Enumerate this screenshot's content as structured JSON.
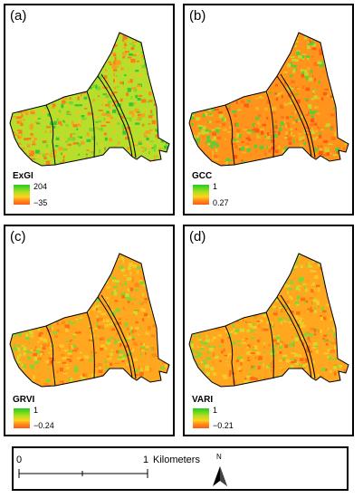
{
  "panels": [
    {
      "label": "(a)",
      "index": "ExGI",
      "max": "204",
      "min": "−35",
      "tone": "green"
    },
    {
      "label": "(b)",
      "index": "GCC",
      "max": "1",
      "min": "0.27",
      "tone": "red"
    },
    {
      "label": "(c)",
      "index": "GRVI",
      "max": "1",
      "min": "−0.24",
      "tone": "orange"
    },
    {
      "label": "(d)",
      "index": "VARI",
      "max": "1",
      "min": "−0.21",
      "tone": "orange"
    }
  ],
  "scale_bar": {
    "start": "0",
    "end": "1",
    "unit": "Kilometers"
  },
  "north_arrow": {
    "label": "N"
  },
  "colors": {
    "high": "#22cc22",
    "mid": "#ffd21e",
    "low": "#ff5a14",
    "frame": "#000000"
  }
}
